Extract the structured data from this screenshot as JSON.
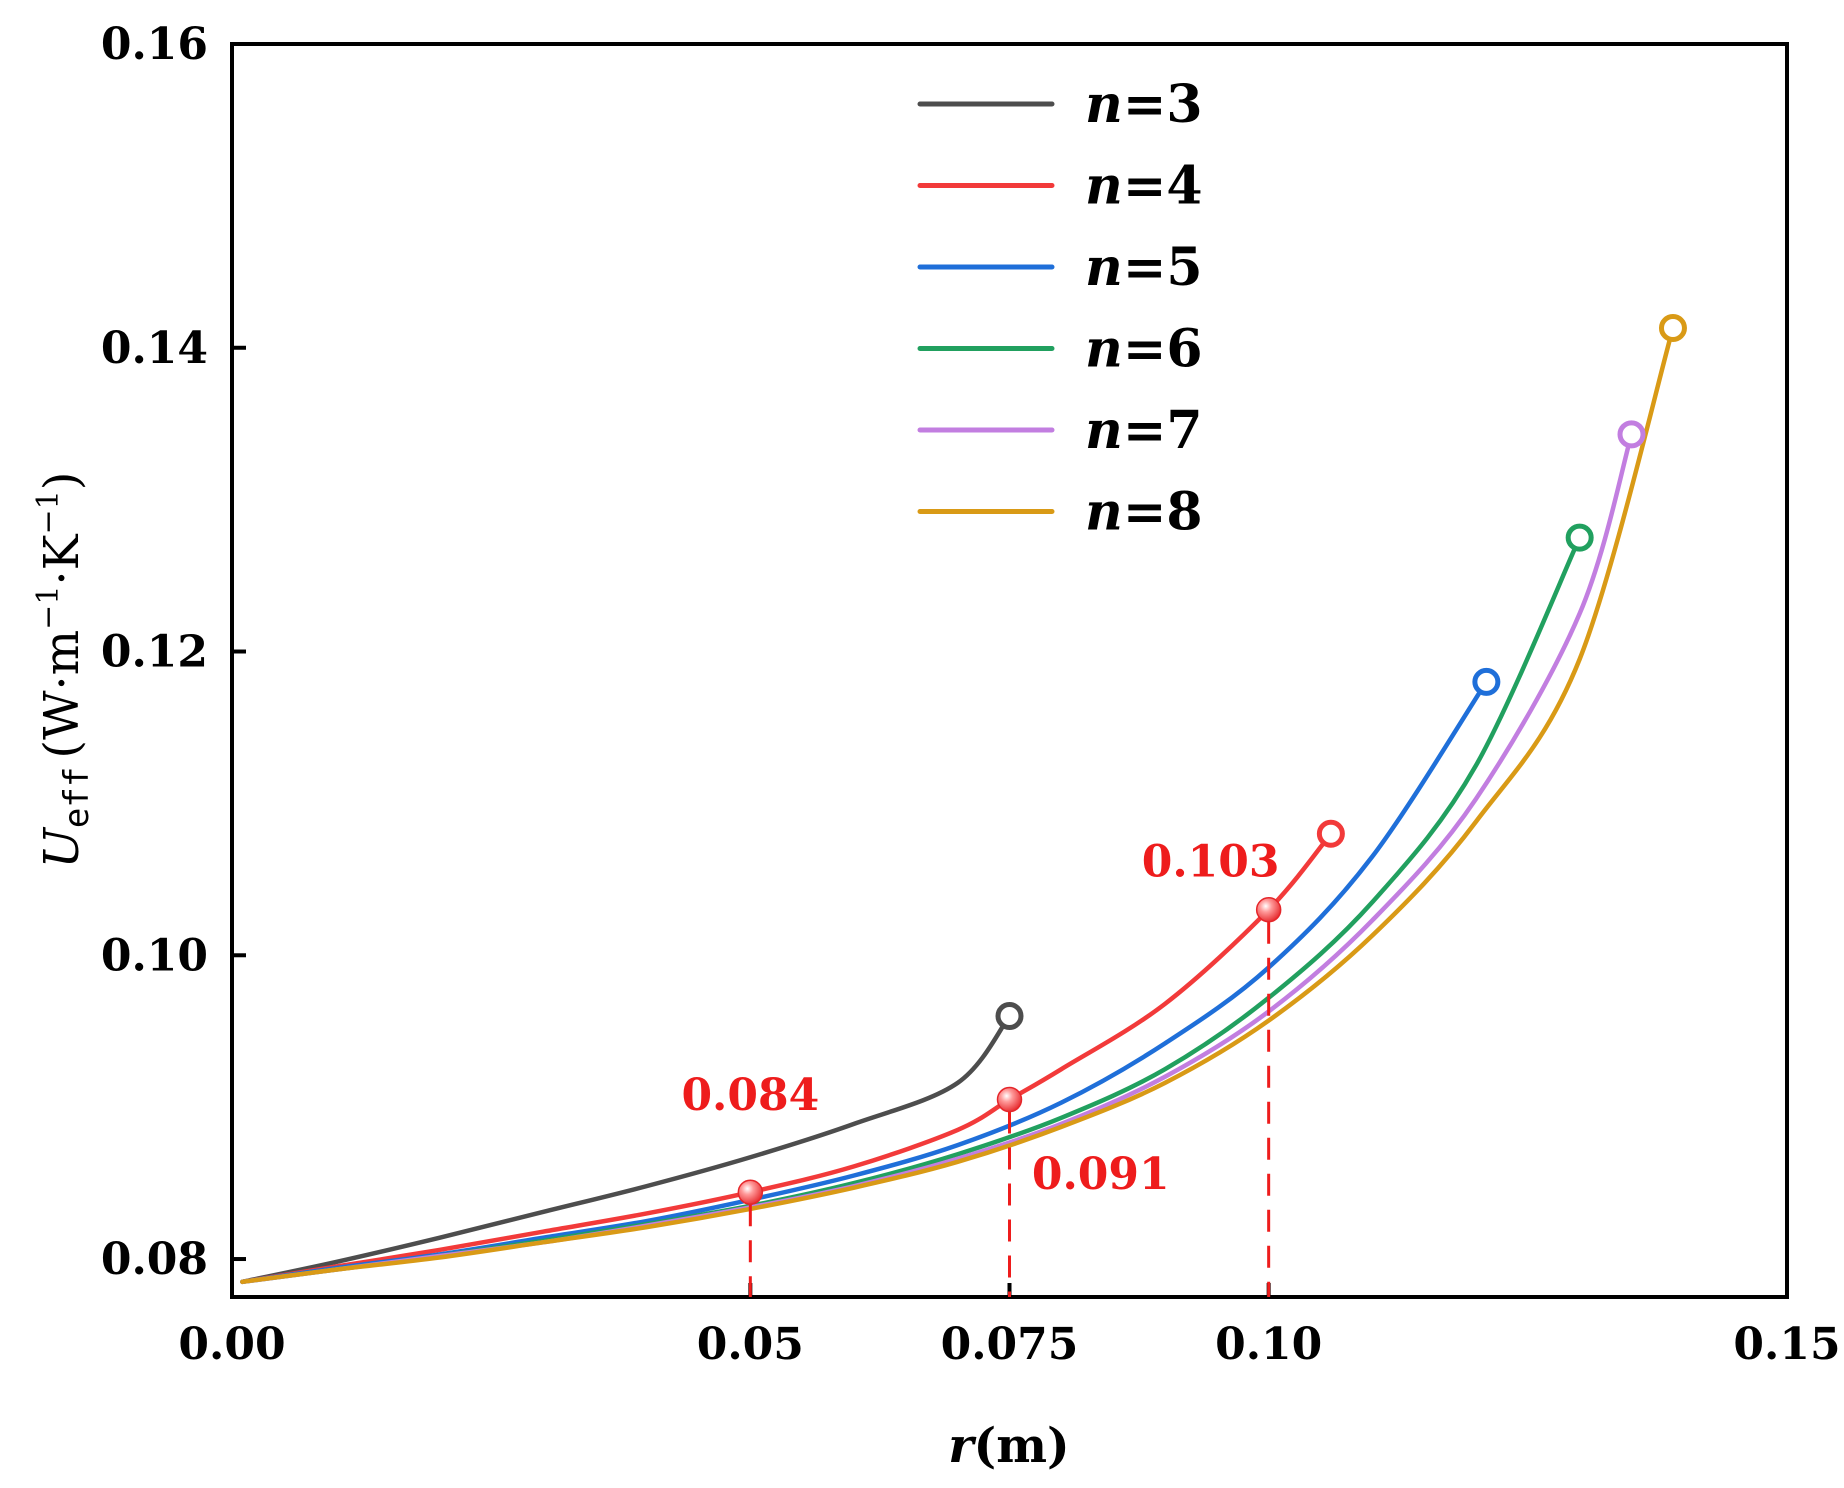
{
  "chart_data": {
    "type": "line",
    "title": "",
    "xlabel": {
      "var": "r",
      "unit": "(m)"
    },
    "ylabel": {
      "var": "U",
      "sub": "eff",
      "unit_main": "(W·m",
      "unit_exp1": "−1",
      "unit_mid": "·K",
      "unit_exp2": "−1",
      "unit_close": ")"
    },
    "xlim": [
      0.0,
      0.15
    ],
    "ylim": [
      0.0775,
      0.16
    ],
    "xticks": [
      {
        "value": 0.0,
        "label": "0.00"
      },
      {
        "value": 0.05,
        "label": "0.05"
      },
      {
        "value": 0.075,
        "label": "0.075"
      },
      {
        "value": 0.1,
        "label": "0.10"
      },
      {
        "value": 0.15,
        "label": "0.15"
      }
    ],
    "yticks": [
      {
        "value": 0.08,
        "label": "0.08"
      },
      {
        "value": 0.1,
        "label": "0.10"
      },
      {
        "value": 0.12,
        "label": "0.12"
      },
      {
        "value": 0.14,
        "label": "0.14"
      },
      {
        "value": 0.16,
        "label": "0.16"
      }
    ],
    "legend_position": "top-center",
    "series": [
      {
        "name": "n=3",
        "n_label": "n",
        "eq_label": "=3",
        "color": "#4d4d4d",
        "x": [
          0.001,
          0.01,
          0.02,
          0.03,
          0.04,
          0.05,
          0.06,
          0.07,
          0.075
        ],
        "y": [
          0.0785,
          0.0798,
          0.0814,
          0.0831,
          0.0848,
          0.0867,
          0.0889,
          0.0916,
          0.096
        ],
        "end_marker": {
          "x": 0.075,
          "y": 0.096
        }
      },
      {
        "name": "n=4",
        "n_label": "n",
        "eq_label": "=4",
        "color": "#f23a3a",
        "x": [
          0.001,
          0.01,
          0.02,
          0.03,
          0.04,
          0.05,
          0.06,
          0.07,
          0.075,
          0.08,
          0.09,
          0.1,
          0.106
        ],
        "y": [
          0.0785,
          0.0795,
          0.0806,
          0.0818,
          0.083,
          0.0844,
          0.0861,
          0.0885,
          0.0905,
          0.0925,
          0.0968,
          0.103,
          0.108
        ],
        "end_marker": {
          "x": 0.106,
          "y": 0.108
        }
      },
      {
        "name": "n=5",
        "n_label": "n",
        "eq_label": "=5",
        "color": "#1f6fd9",
        "x": [
          0.001,
          0.01,
          0.02,
          0.03,
          0.04,
          0.05,
          0.06,
          0.07,
          0.08,
          0.09,
          0.1,
          0.11,
          0.121
        ],
        "y": [
          0.0785,
          0.0794,
          0.0803,
          0.0814,
          0.0825,
          0.0839,
          0.0855,
          0.0875,
          0.0903,
          0.0942,
          0.0992,
          0.1065,
          0.118
        ],
        "end_marker": {
          "x": 0.121,
          "y": 0.118
        }
      },
      {
        "name": "n=6",
        "n_label": "n",
        "eq_label": "=6",
        "color": "#21a05f",
        "x": [
          0.001,
          0.01,
          0.02,
          0.03,
          0.04,
          0.05,
          0.06,
          0.07,
          0.08,
          0.09,
          0.1,
          0.11,
          0.12,
          0.13
        ],
        "y": [
          0.0785,
          0.0793,
          0.0802,
          0.0812,
          0.0823,
          0.0835,
          0.085,
          0.0869,
          0.0893,
          0.0925,
          0.0972,
          0.1035,
          0.1125,
          0.1275
        ],
        "end_marker": {
          "x": 0.13,
          "y": 0.1275
        }
      },
      {
        "name": "n=7",
        "n_label": "n",
        "eq_label": "=7",
        "color": "#c27ee0",
        "x": [
          0.001,
          0.01,
          0.02,
          0.03,
          0.04,
          0.05,
          0.06,
          0.07,
          0.08,
          0.09,
          0.1,
          0.11,
          0.12,
          0.13,
          0.135
        ],
        "y": [
          0.0785,
          0.0793,
          0.0802,
          0.0811,
          0.0822,
          0.0834,
          0.0848,
          0.0866,
          0.0889,
          0.092,
          0.0963,
          0.1023,
          0.1103,
          0.1225,
          0.1343
        ],
        "end_marker": {
          "x": 0.135,
          "y": 0.1343
        }
      },
      {
        "name": "n=8",
        "n_label": "n",
        "eq_label": "=8",
        "color": "#d99a16",
        "x": [
          0.001,
          0.01,
          0.02,
          0.03,
          0.04,
          0.05,
          0.06,
          0.07,
          0.08,
          0.09,
          0.1,
          0.11,
          0.12,
          0.13,
          0.139
        ],
        "y": [
          0.0785,
          0.0793,
          0.0801,
          0.0811,
          0.0821,
          0.0833,
          0.0847,
          0.0864,
          0.0887,
          0.0916,
          0.0957,
          0.1013,
          0.1088,
          0.1195,
          0.1413
        ],
        "end_marker": {
          "x": 0.139,
          "y": 0.1413
        }
      }
    ],
    "highlight_points": [
      {
        "x": 0.05,
        "y": 0.0844,
        "label": "0.084",
        "label_x": 0.05,
        "label_y": 0.0898,
        "label_anchor": "middle"
      },
      {
        "x": 0.075,
        "y": 0.0905,
        "label": "0.091",
        "label_x": 0.0838,
        "label_y": 0.0846,
        "label_anchor": "middle"
      },
      {
        "x": 0.1,
        "y": 0.103,
        "label": "0.103",
        "label_x": 0.0944,
        "label_y": 0.1052,
        "label_anchor": "middle"
      }
    ],
    "annotation_color": "#ee1c1c"
  }
}
